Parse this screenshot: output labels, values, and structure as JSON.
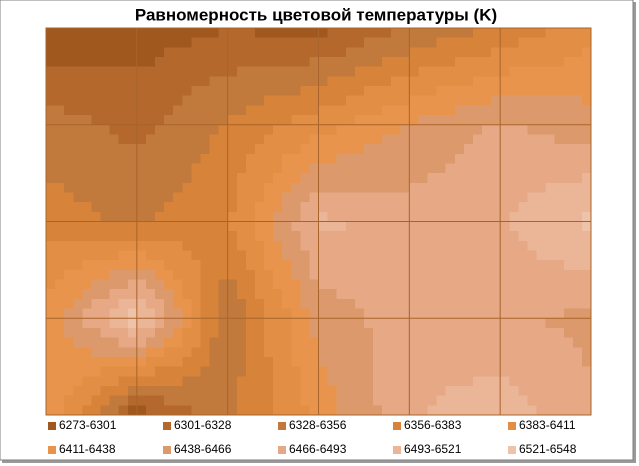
{
  "chart_data": {
    "type": "contour",
    "title": "Равномерность цветовой температуры (K)",
    "z": [
      [
        6280,
        6285,
        6300,
        6290,
        6330,
        6360,
        6400
      ],
      [
        6340,
        6320,
        6360,
        6400,
        6440,
        6470,
        6450
      ],
      [
        6370,
        6350,
        6380,
        6500,
        6480,
        6490,
        6530
      ],
      [
        6420,
        6540,
        6330,
        6450,
        6480,
        6470,
        6460
      ],
      [
        6440,
        6280,
        6350,
        6420,
        6490,
        6510,
        6470
      ]
    ],
    "bands": [
      {
        "label": "6273-6301",
        "color": "#a0581e"
      },
      {
        "label": "6301-6328",
        "color": "#b4682c"
      },
      {
        "label": "6328-6356",
        "color": "#c27a3c"
      },
      {
        "label": "6356-6383",
        "color": "#d8833a"
      },
      {
        "label": "6383-6411",
        "color": "#e28e44"
      },
      {
        "label": "6411-6438",
        "color": "#e8944c"
      },
      {
        "label": "6438-6466",
        "color": "#dc9a6c"
      },
      {
        "label": "6466-6493",
        "color": "#e6a885"
      },
      {
        "label": "6493-6521",
        "color": "#ebb598"
      },
      {
        "label": "6521-6548",
        "color": "#efc3aa"
      }
    ],
    "grid": true
  }
}
